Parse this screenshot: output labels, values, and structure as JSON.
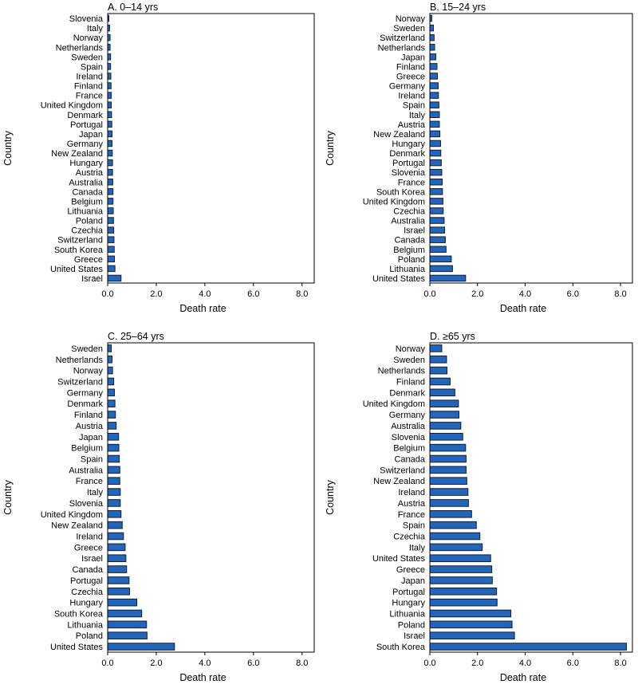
{
  "chart_data": [
    {
      "type": "bar",
      "orientation": "horizontal",
      "title": "A. 0–14 yrs",
      "xlabel": "Death rate",
      "ylabel": "Country",
      "xlim": [
        0,
        8.5
      ],
      "xticks": [
        "0.0",
        "2.0",
        "4.0",
        "6.0",
        "8.0"
      ],
      "categories": [
        "Slovenia",
        "Italy",
        "Norway",
        "Netherlands",
        "Sweden",
        "Spain",
        "Ireland",
        "Finland",
        "France",
        "United Kingdom",
        "Denmark",
        "Portugal",
        "Japan",
        "Germany",
        "New Zealand",
        "Hungary",
        "Austria",
        "Australia",
        "Canada",
        "Belgium",
        "Lithuania",
        "Poland",
        "Czechia",
        "Switzerland",
        "South Korea",
        "Greece",
        "United States",
        "Israel"
      ],
      "values": [
        0.05,
        0.08,
        0.1,
        0.1,
        0.12,
        0.12,
        0.13,
        0.14,
        0.15,
        0.15,
        0.16,
        0.17,
        0.18,
        0.18,
        0.19,
        0.2,
        0.2,
        0.21,
        0.22,
        0.22,
        0.23,
        0.24,
        0.25,
        0.26,
        0.27,
        0.28,
        0.3,
        0.55
      ]
    },
    {
      "type": "bar",
      "orientation": "horizontal",
      "title": "B. 15–24 yrs",
      "xlabel": "Death rate",
      "ylabel": "Country",
      "xlim": [
        0,
        8.5
      ],
      "xticks": [
        "0.0",
        "2.0",
        "4.0",
        "6.0",
        "8.0"
      ],
      "categories": [
        "Norway",
        "Sweden",
        "Switzerland",
        "Netherlands",
        "Japan",
        "Finland",
        "Greece",
        "Germany",
        "Ireland",
        "Spain",
        "Italy",
        "Austria",
        "New Zealand",
        "Hungary",
        "Denmark",
        "Portugal",
        "Slovenia",
        "France",
        "South Korea",
        "United Kingdom",
        "Czechia",
        "Australia",
        "Israel",
        "Canada",
        "Belgium",
        "Poland",
        "Lithuania",
        "United States"
      ],
      "values": [
        0.08,
        0.15,
        0.18,
        0.2,
        0.25,
        0.3,
        0.32,
        0.35,
        0.36,
        0.38,
        0.4,
        0.4,
        0.42,
        0.45,
        0.46,
        0.48,
        0.5,
        0.52,
        0.53,
        0.55,
        0.56,
        0.6,
        0.62,
        0.65,
        0.68,
        0.9,
        0.95,
        1.5
      ]
    },
    {
      "type": "bar",
      "orientation": "horizontal",
      "title": "C. 25–64 yrs",
      "xlabel": "Death rate",
      "ylabel": "Country",
      "xlim": [
        0,
        8.5
      ],
      "xticks": [
        "0.0",
        "2.0",
        "4.0",
        "6.0",
        "8.0"
      ],
      "categories": [
        "Sweden",
        "Netherlands",
        "Norway",
        "Switzerland",
        "Germany",
        "Denmark",
        "Finland",
        "Austria",
        "Japan",
        "Belgium",
        "Spain",
        "Australia",
        "France",
        "Italy",
        "Slovenia",
        "United Kingdom",
        "New Zealand",
        "Ireland",
        "Greece",
        "Israel",
        "Canada",
        "Portugal",
        "Czechia",
        "Hungary",
        "South Korea",
        "Lithuania",
        "Poland",
        "United States"
      ],
      "values": [
        0.15,
        0.18,
        0.2,
        0.25,
        0.28,
        0.3,
        0.32,
        0.35,
        0.45,
        0.46,
        0.48,
        0.5,
        0.5,
        0.52,
        0.52,
        0.55,
        0.6,
        0.65,
        0.72,
        0.75,
        0.78,
        0.88,
        0.9,
        1.2,
        1.4,
        1.6,
        1.62,
        2.75
      ]
    },
    {
      "type": "bar",
      "orientation": "horizontal",
      "title": "D. ≥65 yrs",
      "xlabel": "Death rate",
      "ylabel": "Country",
      "xlim": [
        0,
        8.5
      ],
      "xticks": [
        "0.0",
        "2.0",
        "4.0",
        "6.0",
        "8.0"
      ],
      "categories": [
        "Norway",
        "Sweden",
        "Netherlands",
        "Finland",
        "Denmark",
        "United Kingdom",
        "Germany",
        "Australia",
        "Slovenia",
        "Belgium",
        "Canada",
        "Switzerland",
        "New Zealand",
        "Ireland",
        "Austria",
        "France",
        "Spain",
        "Czechia",
        "Italy",
        "United States",
        "Greece",
        "Japan",
        "Portugal",
        "Hungary",
        "Lithuania",
        "Poland",
        "Israel",
        "South Korea"
      ],
      "values": [
        0.5,
        0.7,
        0.72,
        0.85,
        1.05,
        1.2,
        1.22,
        1.3,
        1.38,
        1.5,
        1.52,
        1.52,
        1.55,
        1.6,
        1.62,
        1.75,
        1.95,
        2.1,
        2.2,
        2.55,
        2.6,
        2.62,
        2.8,
        2.82,
        3.4,
        3.45,
        3.55,
        8.25
      ]
    }
  ]
}
